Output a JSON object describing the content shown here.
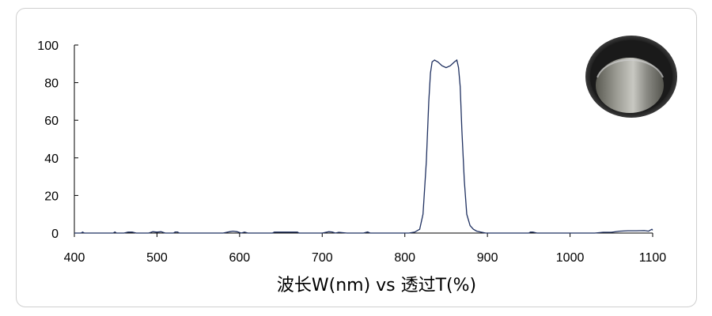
{
  "chart_data": {
    "type": "line",
    "title": "",
    "xlabel": "波长W(nm) vs 透过T(%)",
    "ylabel": "",
    "xlim": [
      400,
      1100
    ],
    "ylim": [
      0,
      100
    ],
    "x_ticks": [
      400,
      500,
      600,
      700,
      800,
      900,
      1000,
      1100
    ],
    "y_ticks": [
      0,
      20,
      40,
      60,
      80,
      100
    ],
    "grid": false,
    "legend": "none",
    "line_color": "#1f3060",
    "series": [
      {
        "x": [
          400,
          408,
          410,
          412,
          440,
          447,
          449,
          451,
          460,
          465,
          470,
          475,
          490,
          495,
          500,
          505,
          510,
          520,
          522,
          525,
          527,
          580,
          588,
          592,
          597,
          602,
          606,
          610,
          613,
          617,
          640,
          642,
          650,
          670,
          672,
          700,
          708,
          712,
          716,
          720,
          730,
          740,
          750,
          755,
          758,
          765,
          790,
          805,
          812,
          818,
          822,
          826,
          829,
          831,
          833,
          836,
          840,
          845,
          850,
          855,
          860,
          863,
          865,
          867,
          869,
          872,
          875,
          879,
          883,
          887,
          892,
          898,
          905,
          950,
          952,
          955,
          960,
          1000,
          1030,
          1040,
          1050,
          1060,
          1070,
          1080,
          1090,
          1095,
          1099,
          1100
        ],
        "y": [
          0,
          0,
          0.5,
          0,
          0,
          0,
          0.6,
          0,
          0,
          0.5,
          0.5,
          0,
          0,
          0.7,
          0.5,
          0.7,
          0,
          0,
          0.6,
          0.6,
          0,
          0,
          0.7,
          1.0,
          0.7,
          0,
          0.5,
          0,
          0,
          0,
          0,
          0.5,
          0.5,
          0.5,
          0,
          0,
          0.7,
          0.6,
          0,
          0.4,
          0,
          0,
          0,
          0.6,
          0,
          0,
          0,
          0,
          0.5,
          2,
          10,
          38,
          70,
          85,
          91,
          92,
          91,
          89,
          88,
          89,
          91,
          92,
          88,
          78,
          55,
          28,
          10,
          4,
          2,
          1,
          0.5,
          0,
          0,
          0,
          0.5,
          0.5,
          0,
          0,
          0,
          0.4,
          0.4,
          1.0,
          1.2,
          1.2,
          1.3,
          1.0,
          2.0,
          1.5
        ]
      }
    ]
  }
}
